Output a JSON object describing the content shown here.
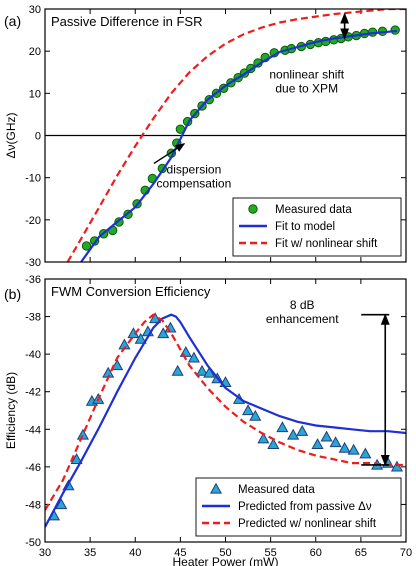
{
  "chart_data": [
    {
      "panel_label": "(a)",
      "type": "line",
      "title": "Passive Difference in FSR",
      "ylabel": "Δν(GHz)",
      "xlabel": "",
      "xlim": [
        30,
        70
      ],
      "ylim": [
        -30,
        30
      ],
      "x_ticks": [
        30,
        35,
        40,
        45,
        50,
        55,
        60,
        65,
        70
      ],
      "y_ticks": [
        -30,
        -20,
        -10,
        0,
        10,
        20,
        30
      ],
      "y_tick_labels": [
        "-30",
        "-20",
        "-10",
        "0",
        "10",
        "20",
        "30"
      ],
      "grid": false,
      "zero_line": true,
      "legend_position": "bottom-right",
      "legend": [
        "Measured data",
        "Fit to model",
        "Fit w/ nonlinear shift"
      ],
      "series": [
        {
          "name": "Measured data",
          "style": "markers",
          "marker": "circle",
          "color": "#22aa22",
          "x": [
            34.6,
            35.5,
            36.5,
            37.5,
            38.2,
            39.2,
            40.2,
            41.1,
            41.9,
            43.0,
            44.0,
            44.6,
            45.0,
            45.8,
            46.6,
            47.4,
            48.2,
            49.0,
            49.8,
            50.6,
            51.4,
            52.1,
            52.8,
            53.6,
            54.4,
            55.4,
            56.6,
            57.3,
            58.4,
            59.4,
            60.3,
            61.1,
            62.0,
            62.8,
            63.6,
            64.5,
            65.4,
            66.3,
            67.4,
            68.8
          ],
          "y": [
            -26.2,
            -25.0,
            -23.3,
            -22.5,
            -20.5,
            -18.7,
            -16.2,
            -13.0,
            -10.2,
            -7.8,
            -4.2,
            -1.8,
            1.5,
            3.3,
            5.2,
            7.0,
            8.5,
            10.0,
            11.2,
            12.5,
            13.7,
            14.8,
            15.9,
            17.2,
            18.5,
            19.6,
            20.2,
            20.6,
            21.1,
            21.6,
            22.0,
            22.3,
            22.7,
            23.0,
            23.4,
            23.7,
            24.2,
            24.5,
            24.7,
            25.0
          ]
        },
        {
          "name": "Fit to model",
          "style": "solid",
          "color": "#1f2fd6",
          "x": [
            34.0,
            36.0,
            38.0,
            40.0,
            42.0,
            44.0,
            46.0,
            48.0,
            50.0,
            52.0,
            54.0,
            56.0,
            58.0,
            60.0,
            62.0,
            64.0,
            66.0,
            68.0,
            69.0
          ],
          "y": [
            -30.0,
            -24.0,
            -20.5,
            -17.0,
            -11.5,
            -5.2,
            3.5,
            8.5,
            11.8,
            14.5,
            17.3,
            19.8,
            21.0,
            22.2,
            23.0,
            23.6,
            24.2,
            24.6,
            24.8
          ]
        },
        {
          "name": "Fit w/ nonlinear shift",
          "style": "dashed",
          "color": "#ee1c1c",
          "x": [
            32.5,
            34.0,
            36.0,
            38.0,
            40.0,
            42.0,
            44.0,
            46.0,
            48.0,
            50.0,
            52.0,
            54.0,
            56.0,
            58.0,
            60.0,
            62.0,
            64.0,
            66.0,
            68.0,
            70.0
          ],
          "y": [
            -30.0,
            -24.5,
            -17.0,
            -9.5,
            -2.5,
            4.0,
            10.0,
            15.0,
            18.8,
            21.8,
            24.0,
            25.6,
            26.8,
            27.6,
            28.2,
            28.8,
            29.2,
            29.6,
            30.0,
            30.0
          ]
        }
      ],
      "annotations": [
        {
          "text_lines": [
            "nonlinear shift",
            "due to XPM"
          ],
          "x": 59.0,
          "y": 13.5,
          "arrow": "double",
          "arrow_x": 63.2,
          "arrow_from_y": 23.0,
          "arrow_to_y": 28.9
        },
        {
          "text_lines": [
            "dispersion",
            "compensation"
          ],
          "x": 46.5,
          "y": -9.0,
          "arrow_to_x": 45.0,
          "arrow_to_y": -1.0
        }
      ]
    },
    {
      "panel_label": "(b)",
      "type": "line",
      "title": "FWM Conversion Efficiency",
      "ylabel": "Efficiency (dB)",
      "xlabel": "Heater Power (mW)",
      "xlim": [
        30,
        70
      ],
      "ylim": [
        -50,
        -36
      ],
      "x_ticks": [
        30,
        35,
        40,
        45,
        50,
        55,
        60,
        65,
        70
      ],
      "x_tick_labels": [
        "30",
        "35",
        "40",
        "45",
        "50",
        "55",
        "60",
        "65",
        "70"
      ],
      "y_ticks": [
        -50,
        -48,
        -46,
        -44,
        -42,
        -40,
        -38,
        -36
      ],
      "y_tick_labels": [
        "-50",
        "-48",
        "-46",
        "-44",
        "-42",
        "-40",
        "-38",
        "-36"
      ],
      "grid": false,
      "legend_position": "bottom-right",
      "legend": [
        "Measured data",
        "Predicted from passive Δν",
        "Predicted w/ nonlinear shift"
      ],
      "series": [
        {
          "name": "Measured data",
          "style": "markers",
          "marker": "triangle",
          "color": "#2aa5d6",
          "x": [
            31.0,
            31.8,
            32.6,
            33.5,
            34.2,
            35.2,
            35.9,
            37.0,
            38.0,
            38.8,
            39.8,
            40.6,
            41.4,
            42.2,
            43.1,
            43.9,
            44.7,
            45.6,
            46.5,
            47.4,
            48.2,
            49.1,
            50.0,
            51.5,
            52.5,
            53.3,
            54.2,
            55.3,
            56.3,
            57.5,
            58.5,
            60.2,
            61.2,
            62.2,
            63.2,
            64.2,
            65.5,
            66.8,
            68.0,
            69.0
          ],
          "y": [
            -48.6,
            -48.0,
            -47.0,
            -45.6,
            -44.3,
            -42.5,
            -42.4,
            -41.0,
            -40.6,
            -39.5,
            -38.9,
            -39.2,
            -38.8,
            -38.1,
            -38.9,
            -38.6,
            -40.9,
            -39.9,
            -40.2,
            -40.9,
            -41.0,
            -41.3,
            -41.5,
            -42.4,
            -43.0,
            -43.3,
            -44.5,
            -44.8,
            -43.9,
            -44.3,
            -44.1,
            -44.8,
            -44.4,
            -44.7,
            -45.0,
            -45.1,
            -45.3,
            -45.9,
            -45.8,
            -46.0
          ]
        },
        {
          "name": "Predicted from passive Δν",
          "style": "solid",
          "color": "#1f2fd6",
          "x": [
            30.0,
            32.0,
            34.0,
            36.0,
            38.0,
            40.0,
            42.0,
            43.0,
            44.0,
            44.5,
            45.0,
            46.0,
            48.0,
            50.0,
            52.0,
            54.0,
            56.0,
            58.0,
            60.0,
            62.0,
            64.0,
            66.0,
            68.0,
            70.0
          ],
          "y": [
            -49.2,
            -47.4,
            -45.7,
            -43.9,
            -42.0,
            -40.2,
            -38.6,
            -38.1,
            -37.9,
            -38.0,
            -38.3,
            -39.1,
            -40.6,
            -41.8,
            -42.5,
            -42.9,
            -43.3,
            -43.6,
            -43.8,
            -43.9,
            -44.0,
            -44.1,
            -44.1,
            -44.2
          ]
        },
        {
          "name": "Predicted w/ nonlinear shift",
          "style": "dashed",
          "color": "#ee1c1c",
          "x": [
            30.0,
            32.0,
            34.0,
            36.0,
            38.0,
            40.0,
            41.0,
            42.0,
            43.0,
            44.0,
            46.0,
            48.0,
            50.0,
            52.0,
            54.0,
            56.0,
            58.0,
            60.0,
            62.0,
            64.0,
            66.0,
            68.0,
            70.0
          ],
          "y": [
            -48.3,
            -46.7,
            -44.5,
            -42.3,
            -40.2,
            -38.9,
            -38.3,
            -37.9,
            -38.2,
            -38.9,
            -40.6,
            -41.8,
            -42.8,
            -43.6,
            -44.2,
            -44.7,
            -45.1,
            -45.4,
            -45.6,
            -45.8,
            -45.8,
            -45.9,
            -45.9
          ]
        }
      ],
      "annotations": [
        {
          "text_lines": [
            "8 dB",
            "enhancement"
          ],
          "x": 58.5,
          "y": -37.6,
          "arrow": "double",
          "arrow_x": 67.7,
          "arrow_from_y": -37.9,
          "arrow_to_y": -45.9
        }
      ]
    }
  ]
}
